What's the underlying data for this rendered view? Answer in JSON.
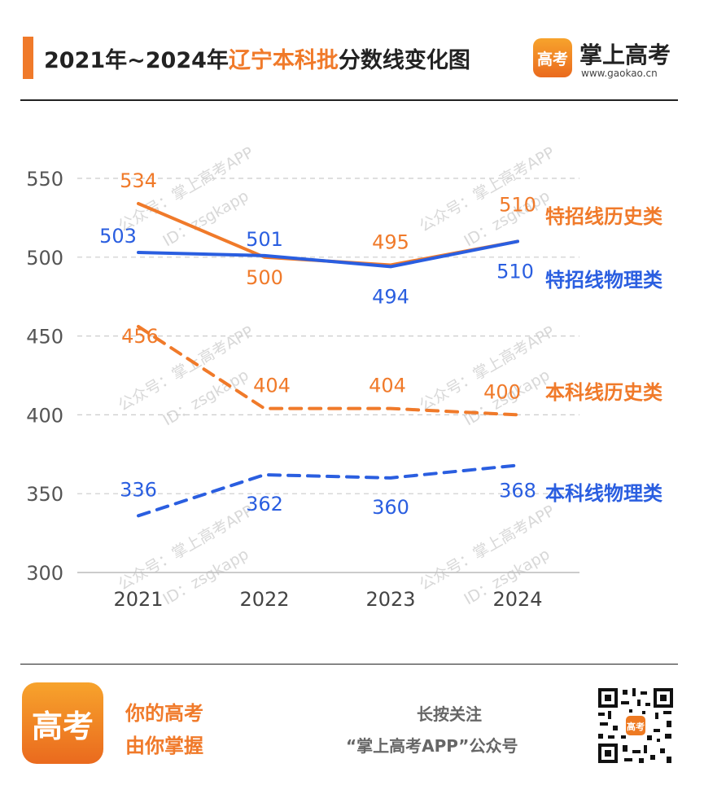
{
  "header": {
    "title_prefix": "2021年~2024年",
    "title_highlight": "辽宁本科批",
    "title_suffix": "分数线变化图",
    "brand_logo_text": "高考",
    "brand_name": "掌上高考",
    "brand_url": "www.gaokao.cn"
  },
  "watermark": {
    "line1": "公众号：掌上高考APP",
    "line2": "ID：zsgkapp"
  },
  "colors": {
    "orange": "#f07a2a",
    "blue": "#2a5ee0",
    "grid": "#cccccc",
    "axis_text": "#555555",
    "watermark": "#d8d8d8"
  },
  "chart_data": {
    "type": "line",
    "x": [
      "2021",
      "2022",
      "2023",
      "2024"
    ],
    "ylim": [
      300,
      550
    ],
    "yticks": [
      300,
      350,
      400,
      450,
      500,
      550
    ],
    "grid": "horizontal dashed",
    "series": [
      {
        "name": "特招线历史类",
        "values": [
          534,
          500,
          495,
          510
        ],
        "color": "#f07a2a",
        "style": "solid"
      },
      {
        "name": "特招线物理类",
        "values": [
          503,
          501,
          494,
          510
        ],
        "color": "#2a5ee0",
        "style": "solid"
      },
      {
        "name": "本科线历史类",
        "values": [
          456,
          404,
          404,
          400
        ],
        "color": "#f07a2a",
        "style": "dashed"
      },
      {
        "name": "本科线物理类",
        "values": [
          336,
          362,
          360,
          368
        ],
        "color": "#2a5ee0",
        "style": "dashed"
      }
    ]
  },
  "footer": {
    "logo_text": "高考",
    "slogan_line1": "你的高考",
    "slogan_line2": "由你掌握",
    "follow_line1": "长按关注",
    "follow_line2": "“掌上高考APP”公众号",
    "qr_icon": "qr-code-icon"
  }
}
